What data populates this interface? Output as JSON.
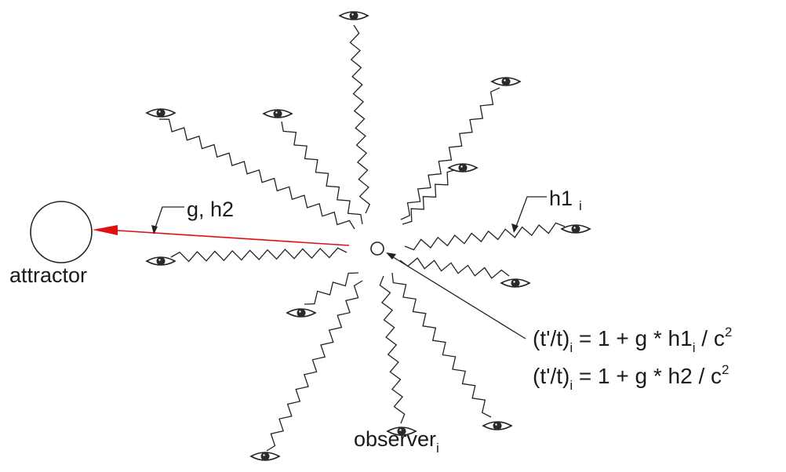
{
  "labels": {
    "attractor": "attractor",
    "g_h2": "g, h2",
    "h1": {
      "main": "h1",
      "sub": "i"
    },
    "observer": {
      "main": "observer",
      "sub": "i"
    },
    "eq1": {
      "lhs": "(t'/t)",
      "lhs_sub": "i",
      "mid": " = 1 + g * h1",
      "mid_sub": "i",
      "rhs": " / c",
      "exp": "2"
    },
    "eq2": {
      "lhs": "(t'/t)",
      "lhs_sub": "i",
      "mid": " = 1 + g * h2 / c",
      "exp": "2"
    }
  },
  "colors": {
    "stroke": "#222222",
    "arrow": "#e01010",
    "eye_fill": "#2a2a2a"
  },
  "icons": {
    "eye": "eye-icon"
  }
}
